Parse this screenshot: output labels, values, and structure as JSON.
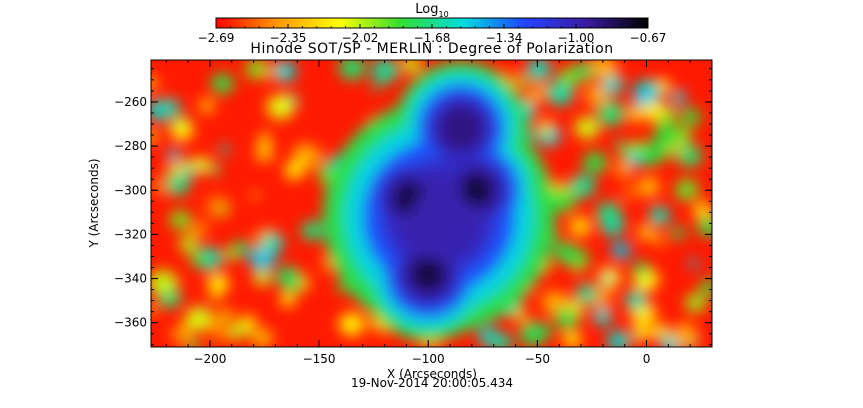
{
  "chart_data": {
    "type": "heatmap",
    "title": "Hinode SOT/SP - MERLIN : Degree of Polarization",
    "xlabel": "X (Arcseconds)",
    "ylabel": "Y (Arcseconds)",
    "timestamp": "19-Nov-2014 20:00:05.434",
    "xlim": [
      -227,
      30
    ],
    "ylim": [
      -371,
      -241
    ],
    "x_ticks": [
      -200,
      -150,
      -100,
      -50,
      0
    ],
    "y_ticks": [
      -260,
      -280,
      -300,
      -320,
      -340,
      -360
    ],
    "colorbar": {
      "title_base": "Log",
      "title_sub": "10",
      "ticks": [
        "-2.69",
        "-2.35",
        "-2.02",
        "-1.68",
        "-1.34",
        "-1.00",
        "-0.67"
      ],
      "range": [
        -2.69,
        -0.67
      ],
      "colors": [
        "#ff0000",
        "#ff9900",
        "#ffff00",
        "#33dd33",
        "#00dddd",
        "#2244ff",
        "#3a1ba0",
        "#000000"
      ]
    },
    "features": [
      {
        "name": "umbra-core",
        "x": -108,
        "y": -304,
        "value": -0.7
      },
      {
        "name": "umbra-core",
        "x": -78,
        "y": -300,
        "value": -0.7
      },
      {
        "name": "umbra-core",
        "x": -100,
        "y": -338,
        "value": -0.7
      },
      {
        "name": "umbra-core",
        "x": -85,
        "y": -272,
        "value": -0.9
      },
      {
        "name": "penumbra",
        "x": -95,
        "y": -312,
        "value": -1.0
      }
    ]
  }
}
